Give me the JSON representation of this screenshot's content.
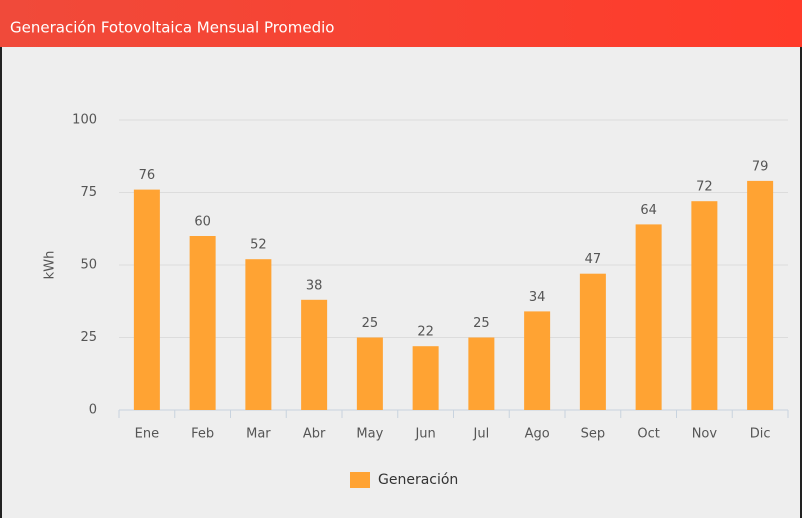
{
  "chart_data": {
    "type": "bar",
    "title": "Generación Fotovoltaica Mensual Promedio",
    "y_label": "kWh",
    "categories": [
      "Ene",
      "Feb",
      "Mar",
      "Abr",
      "May",
      "Jun",
      "Jul",
      "Ago",
      "Sep",
      "Oct",
      "Nov",
      "Dic"
    ],
    "series": [
      {
        "name": "Generación",
        "color": "#ffa333",
        "values": [
          76,
          60,
          52,
          38,
          25,
          22,
          25,
          34,
          47,
          64,
          72,
          79
        ]
      }
    ],
    "ylim": [
      0,
      100
    ],
    "yticks": [
      0,
      25,
      50,
      75,
      100
    ],
    "grid": true,
    "legend": "bottom"
  }
}
